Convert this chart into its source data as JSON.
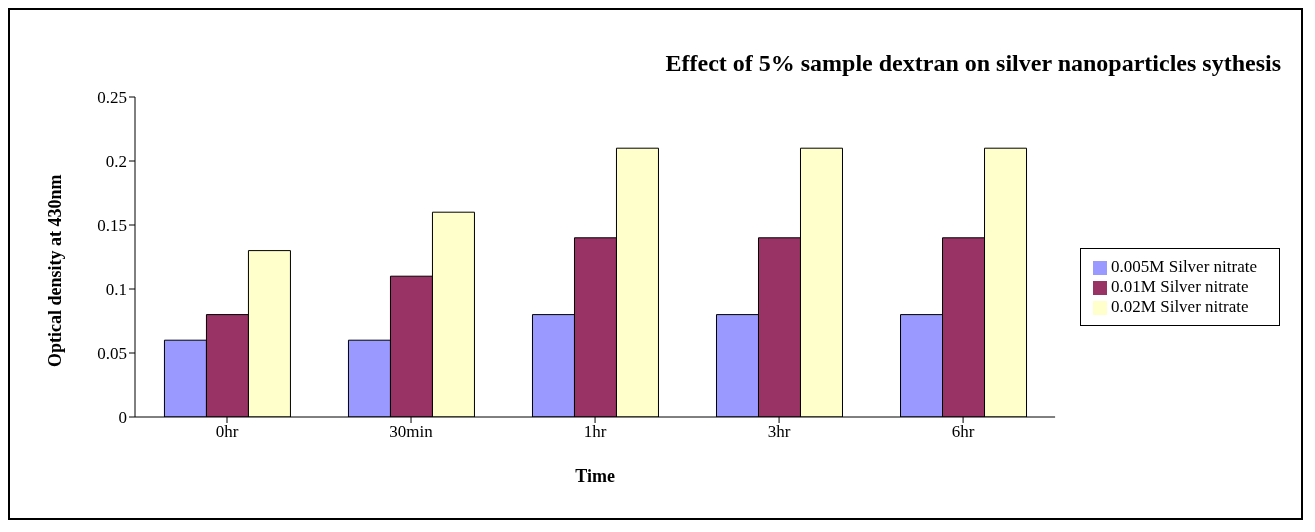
{
  "chart_data": {
    "type": "bar",
    "title": "Effect of  5% sample  dextran on silver nanoparticles sythesis",
    "xlabel": "Time",
    "ylabel": "Optical density at 430nm",
    "categories": [
      "0hr",
      "30min",
      "1hr",
      "3hr",
      "6hr"
    ],
    "series": [
      {
        "name": "0.005M Silver nitrate",
        "color": "#9999ff",
        "values": [
          0.06,
          0.06,
          0.08,
          0.08,
          0.08
        ]
      },
      {
        "name": "0.01M Silver nitrate",
        "color": "#993366",
        "values": [
          0.08,
          0.11,
          0.14,
          0.14,
          0.14
        ]
      },
      {
        "name": "0.02M Silver nitrate",
        "color": "#ffffcc",
        "values": [
          0.13,
          0.16,
          0.21,
          0.21,
          0.21
        ]
      }
    ],
    "ylim": [
      0,
      0.25
    ],
    "yticks": [
      0,
      0.05,
      0.1,
      0.15,
      0.2,
      0.25
    ],
    "grid": false,
    "legend": "right"
  }
}
